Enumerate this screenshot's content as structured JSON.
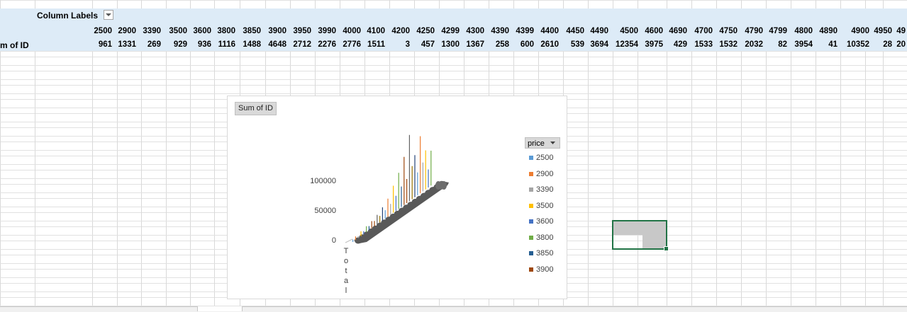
{
  "pivot": {
    "column_labels_title": "Column Labels",
    "row_label": "m of ID",
    "prices": [
      "2500",
      "2900",
      "3390",
      "3500",
      "3600",
      "3800",
      "3850",
      "3900",
      "3950",
      "3990",
      "4000",
      "4100",
      "4200",
      "4250",
      "4299",
      "4300",
      "4390",
      "4399",
      "4400",
      "4450",
      "4490",
      "4500",
      "4600",
      "4690",
      "4700",
      "4750",
      "4790",
      "4799",
      "4800",
      "4890",
      "4900",
      "4950",
      "49"
    ],
    "sums": [
      "961",
      "1331",
      "269",
      "929",
      "936",
      "1116",
      "1488",
      "4648",
      "2712",
      "2276",
      "2776",
      "1511",
      "3",
      "457",
      "1300",
      "1367",
      "258",
      "600",
      "2610",
      "539",
      "3694",
      "12354",
      "3975",
      "429",
      "1533",
      "1532",
      "2032",
      "82",
      "3954",
      "41",
      "10352",
      "28",
      "20"
    ]
  },
  "chart": {
    "field_button": "Sum of ID",
    "legend_title": "price",
    "legend_items": [
      {
        "label": "2500",
        "color": "#5b9bd5"
      },
      {
        "label": "2900",
        "color": "#ed7d31"
      },
      {
        "label": "3390",
        "color": "#a5a5a5"
      },
      {
        "label": "3500",
        "color": "#ffc000"
      },
      {
        "label": "3600",
        "color": "#4472c4"
      },
      {
        "label": "3800",
        "color": "#70ad47"
      },
      {
        "label": "3850",
        "color": "#255e91"
      },
      {
        "label": "3900",
        "color": "#9e480e"
      }
    ],
    "y_ticks": [
      "100000",
      "50000",
      "0"
    ],
    "x_category": "Total"
  },
  "chart_data": {
    "type": "bar",
    "categories": [
      "Total"
    ],
    "y_ticks": [
      0,
      50000,
      100000
    ],
    "ylim": [
      0,
      130000
    ],
    "series": [
      {
        "name": "2500",
        "values": [
          961
        ]
      },
      {
        "name": "2900",
        "values": [
          1331
        ]
      },
      {
        "name": "3390",
        "values": [
          269
        ]
      },
      {
        "name": "3500",
        "values": [
          929
        ]
      },
      {
        "name": "3600",
        "values": [
          936
        ]
      },
      {
        "name": "3800",
        "values": [
          1116
        ]
      },
      {
        "name": "3850",
        "values": [
          1488
        ]
      },
      {
        "name": "3900",
        "values": [
          4648
        ]
      }
    ]
  }
}
